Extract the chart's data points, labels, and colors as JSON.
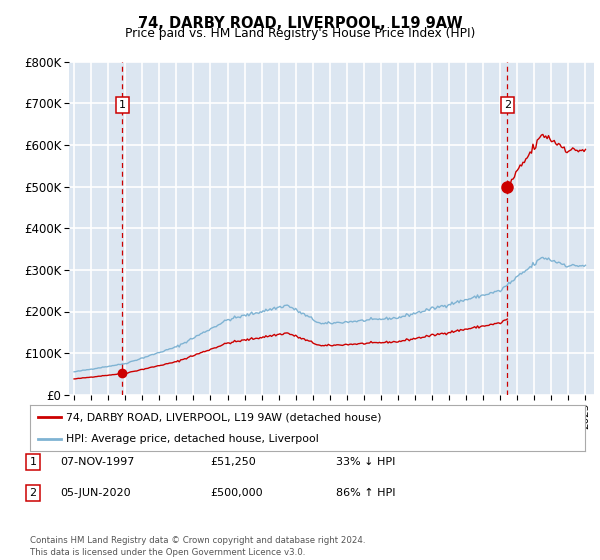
{
  "title": "74, DARBY ROAD, LIVERPOOL, L19 9AW",
  "subtitle": "Price paid vs. HM Land Registry's House Price Index (HPI)",
  "ylim": [
    0,
    800000
  ],
  "yticks": [
    0,
    100000,
    200000,
    300000,
    400000,
    500000,
    600000,
    700000,
    800000
  ],
  "ytick_labels": [
    "£0",
    "£100K",
    "£200K",
    "£300K",
    "£400K",
    "£500K",
    "£600K",
    "£700K",
    "£800K"
  ],
  "plot_bg_color": "#dce6f1",
  "grid_color": "#ffffff",
  "hpi_color": "#7fb3d3",
  "price_color": "#cc0000",
  "dashed_line_color": "#cc0000",
  "transaction1_year": 1997.836,
  "transaction1_price": 51250,
  "transaction2_year": 2020.42,
  "transaction2_price": 500000,
  "legend_label1": "74, DARBY ROAD, LIVERPOOL, L19 9AW (detached house)",
  "legend_label2": "HPI: Average price, detached house, Liverpool",
  "table_row1": [
    "1",
    "07-NOV-1997",
    "£51,250",
    "33% ↓ HPI"
  ],
  "table_row2": [
    "2",
    "05-JUN-2020",
    "£500,000",
    "86% ↑ HPI"
  ],
  "footer": "Contains HM Land Registry data © Crown copyright and database right 2024.\nThis data is licensed under the Open Government Licence v3.0.",
  "xlim_start": 1994.7,
  "xlim_end": 2025.5
}
